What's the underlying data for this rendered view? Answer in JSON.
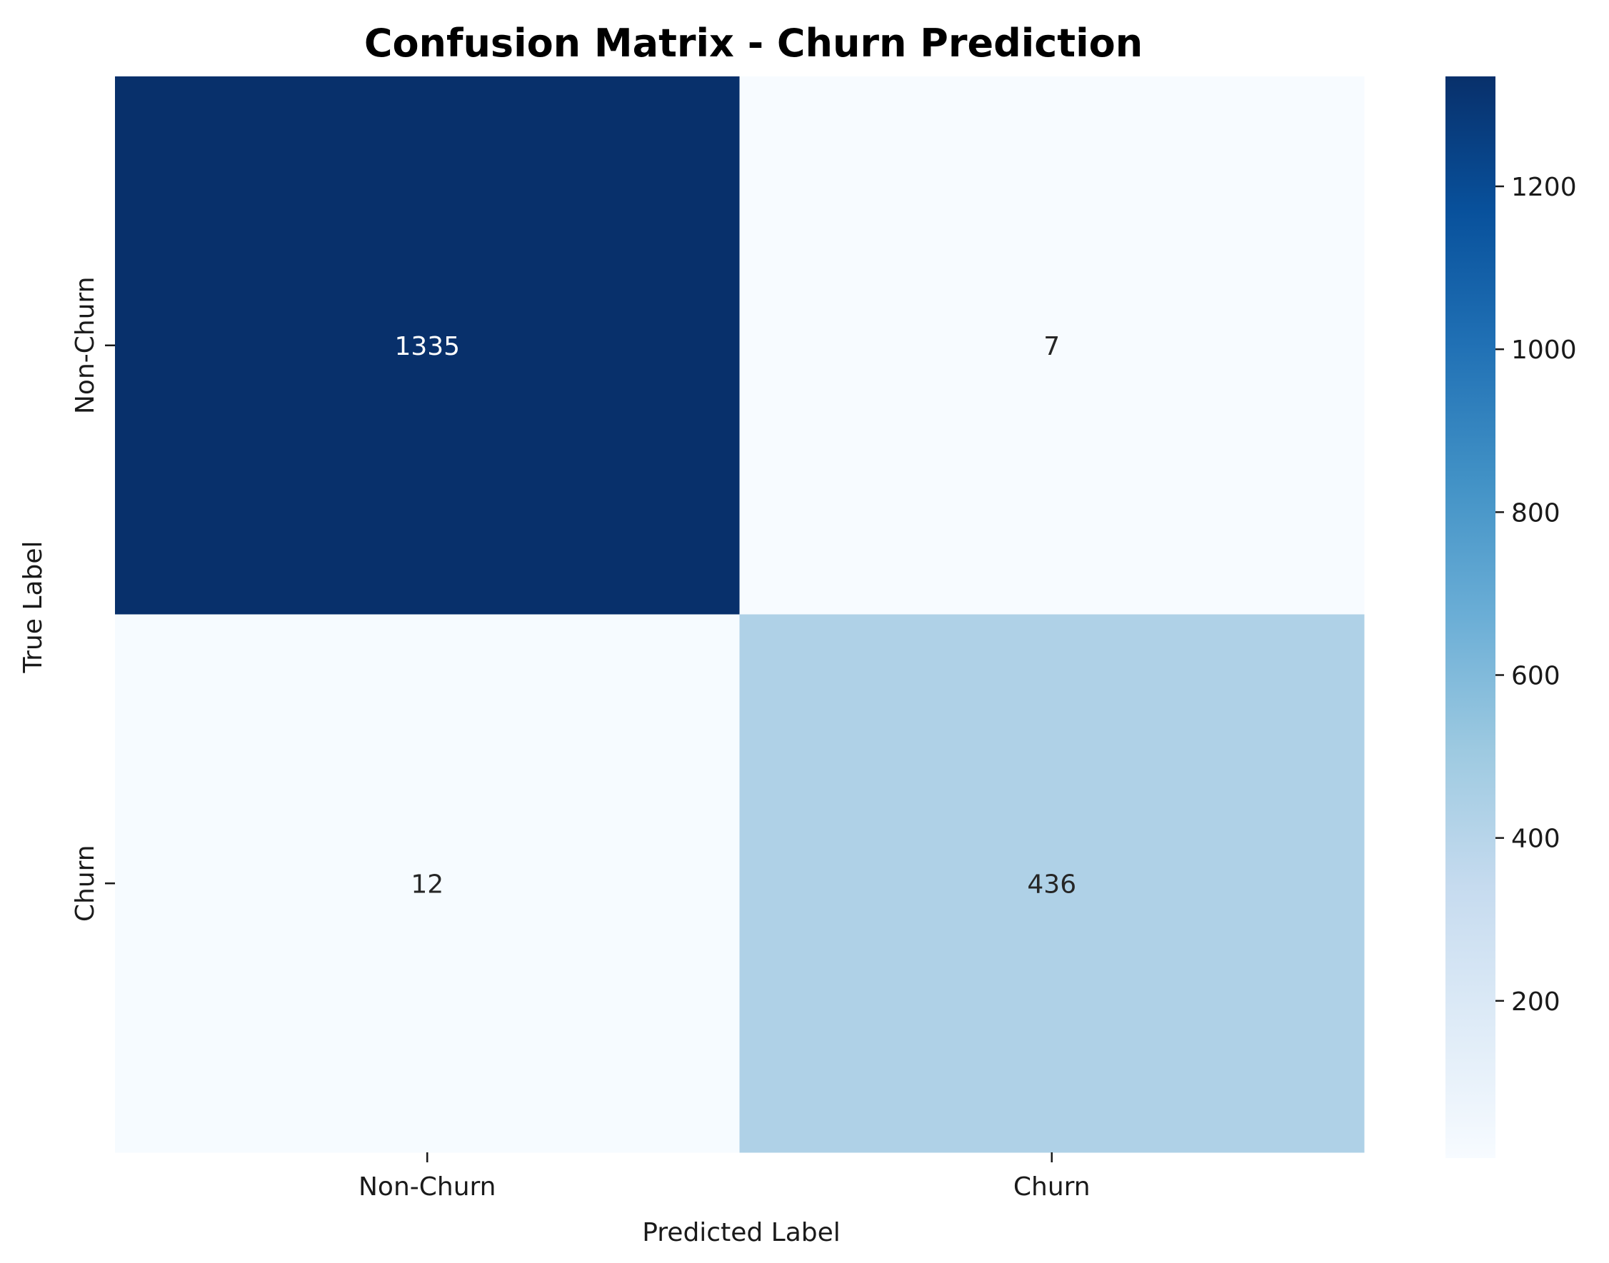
{
  "chart_data": {
    "type": "heatmap",
    "title": "Confusion Matrix - Churn Prediction",
    "xlabel": "Predicted Label",
    "ylabel": "True Label",
    "x_categories": [
      "Non-Churn",
      "Churn"
    ],
    "y_categories": [
      "Non-Churn",
      "Churn"
    ],
    "values": [
      [
        1335,
        7
      ],
      [
        12,
        436
      ]
    ],
    "colorbar": {
      "cmap": "Blues",
      "range": [
        7,
        1335
      ],
      "ticks": [
        200,
        400,
        600,
        800,
        1000,
        1200
      ],
      "tick_labels": [
        "200",
        "400",
        "600",
        "800",
        "1000",
        "1200"
      ]
    },
    "grid": false
  }
}
